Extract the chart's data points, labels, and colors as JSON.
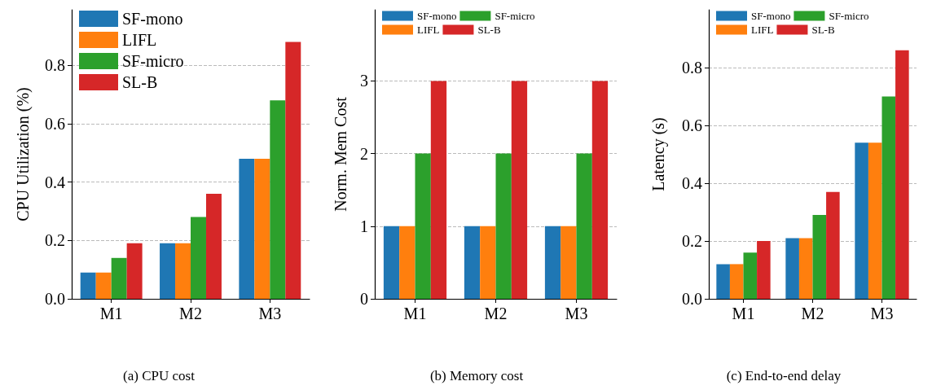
{
  "chart_data": [
    {
      "type": "bar",
      "subtitle": "(a) CPU cost",
      "ylabel": "CPU Utilization (%)",
      "categories": [
        "M1",
        "M2",
        "M3"
      ],
      "series": [
        {
          "name": "SF-mono",
          "color": "#1f77b4",
          "values": [
            0.09,
            0.19,
            0.48
          ]
        },
        {
          "name": "LIFL",
          "color": "#ff7f0e",
          "values": [
            0.09,
            0.19,
            0.48
          ]
        },
        {
          "name": "SF-micro",
          "color": "#2ca02c",
          "values": [
            0.14,
            0.28,
            0.68
          ]
        },
        {
          "name": "SL-B",
          "color": "#d62728",
          "values": [
            0.19,
            0.36,
            0.88
          ]
        }
      ],
      "ylim": [
        0,
        0.99
      ],
      "yticks": [
        {
          "value": 0,
          "label": "0.0"
        },
        0.2,
        0.4,
        0.6,
        0.8
      ],
      "grid": "y",
      "legend": "top left"
    },
    {
      "type": "bar",
      "subtitle": "(b) Memory cost",
      "ylabel": "Norm. Mem Cost",
      "categories": [
        "M1",
        "M2",
        "M3"
      ],
      "series": [
        {
          "name": "SF-mono",
          "color": "#1f77b4",
          "values": [
            1,
            1,
            1
          ]
        },
        {
          "name": "LIFL",
          "color": "#ff7f0e",
          "values": [
            1,
            1,
            1
          ]
        },
        {
          "name": "SF-micro",
          "color": "#2ca02c",
          "values": [
            2,
            2,
            2
          ]
        },
        {
          "name": "SL-B",
          "color": "#d62728",
          "values": [
            3,
            3,
            3
          ]
        }
      ],
      "ylim": [
        0,
        3.98
      ],
      "yticks": [
        0,
        1,
        2,
        3
      ],
      "grid": "y",
      "legend": "top left"
    },
    {
      "type": "bar",
      "subtitle": "(c) End-to-end delay",
      "ylabel": "Latency (s)",
      "categories": [
        "M1",
        "M2",
        "M3"
      ],
      "series": [
        {
          "name": "SF-mono",
          "color": "#1f77b4",
          "values": [
            0.12,
            0.21,
            0.54
          ]
        },
        {
          "name": "LIFL",
          "color": "#ff7f0e",
          "values": [
            0.12,
            0.21,
            0.54
          ]
        },
        {
          "name": "SF-micro",
          "color": "#2ca02c",
          "values": [
            0.16,
            0.29,
            0.7
          ]
        },
        {
          "name": "SL-B",
          "color": "#d62728",
          "values": [
            0.2,
            0.37,
            0.86
          ]
        }
      ],
      "ylim": [
        0,
        1.0
      ],
      "yticks": [
        {
          "value": 0,
          "label": "0.0"
        },
        0.2,
        0.4,
        0.6,
        0.8
      ],
      "grid": "y",
      "legend": "top left"
    }
  ]
}
